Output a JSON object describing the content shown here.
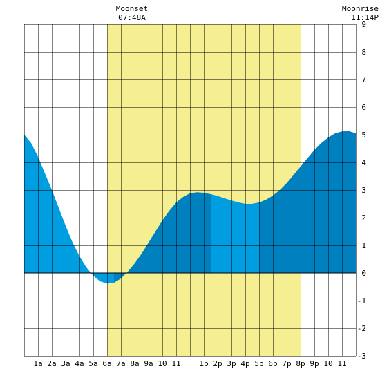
{
  "chart_data": {
    "type": "area",
    "title": "",
    "xlabel": "",
    "ylabel": "",
    "x_unit": "hour",
    "xlim": [
      0,
      24
    ],
    "ylim": [
      -3,
      9
    ],
    "grid": true,
    "x_tick_labels": [
      {
        "hour": 1,
        "label": "1a"
      },
      {
        "hour": 2,
        "label": "2a"
      },
      {
        "hour": 3,
        "label": "3a"
      },
      {
        "hour": 4,
        "label": "4a"
      },
      {
        "hour": 5,
        "label": "5a"
      },
      {
        "hour": 6,
        "label": "6a"
      },
      {
        "hour": 7,
        "label": "7a"
      },
      {
        "hour": 8,
        "label": "8a"
      },
      {
        "hour": 9,
        "label": "9a"
      },
      {
        "hour": 10,
        "label": "10"
      },
      {
        "hour": 11,
        "label": "11"
      },
      {
        "hour": 13,
        "label": "1p"
      },
      {
        "hour": 14,
        "label": "2p"
      },
      {
        "hour": 15,
        "label": "3p"
      },
      {
        "hour": 16,
        "label": "4p"
      },
      {
        "hour": 17,
        "label": "5p"
      },
      {
        "hour": 18,
        "label": "6p"
      },
      {
        "hour": 19,
        "label": "7p"
      },
      {
        "hour": 20,
        "label": "8p"
      },
      {
        "hour": 21,
        "label": "9p"
      },
      {
        "hour": 22,
        "label": "10"
      },
      {
        "hour": 23,
        "label": "11"
      }
    ],
    "y_tick_labels": [
      {
        "value": 9,
        "label": "9"
      },
      {
        "value": 8,
        "label": "8"
      },
      {
        "value": 7,
        "label": "7"
      },
      {
        "value": 6,
        "label": "6"
      },
      {
        "value": 5,
        "label": "5"
      },
      {
        "value": 4,
        "label": "4"
      },
      {
        "value": 3,
        "label": "3"
      },
      {
        "value": 2,
        "label": "2"
      },
      {
        "value": 1,
        "label": "1"
      },
      {
        "value": 0,
        "label": "0"
      },
      {
        "value": -1,
        "label": "-1"
      },
      {
        "value": -2,
        "label": "-2"
      },
      {
        "value": -3,
        "label": "-3"
      }
    ],
    "daylight_band": {
      "start_hour": 6,
      "end_hour": 20
    },
    "shade_bands": [
      {
        "start_hour": 0,
        "end_hour": 6.5
      },
      {
        "start_hour": 13.5,
        "end_hour": 17
      }
    ],
    "series": [
      {
        "x": [
          0,
          0.5,
          1,
          1.5,
          2,
          2.5,
          3,
          3.5,
          4,
          4.5,
          5,
          5.5,
          6,
          6.5,
          7,
          7.5,
          8,
          8.5,
          9,
          9.5,
          10,
          10.5,
          11,
          11.5,
          12,
          12.5,
          13,
          13.5,
          14,
          14.5,
          15,
          15.5,
          16,
          16.5,
          17,
          17.5,
          18,
          18.5,
          19,
          19.5,
          20,
          20.5,
          21,
          21.5,
          22,
          22.5,
          23,
          23.5,
          24
        ],
        "values": [
          5.0,
          4.7,
          4.2,
          3.6,
          3.0,
          2.35,
          1.7,
          1.1,
          0.6,
          0.2,
          -0.1,
          -0.3,
          -0.38,
          -0.35,
          -0.2,
          0.05,
          0.35,
          0.7,
          1.1,
          1.5,
          1.9,
          2.25,
          2.55,
          2.75,
          2.88,
          2.92,
          2.9,
          2.85,
          2.78,
          2.7,
          2.62,
          2.55,
          2.5,
          2.5,
          2.55,
          2.65,
          2.8,
          3.0,
          3.25,
          3.55,
          3.85,
          4.15,
          4.45,
          4.7,
          4.9,
          5.05,
          5.12,
          5.13,
          5.05
        ]
      }
    ],
    "annotations": [
      {
        "label": "Moonset",
        "time": "07:48A",
        "hour": 7.8
      },
      {
        "label": "Moonrise",
        "time": "11:14P",
        "hour": 23.23
      }
    ],
    "colors": {
      "background": "#ffffff",
      "daylight": "#f5ef92",
      "tide_light": "#009de0",
      "tide_dark": "#0080bf",
      "grid": "#000000"
    }
  }
}
